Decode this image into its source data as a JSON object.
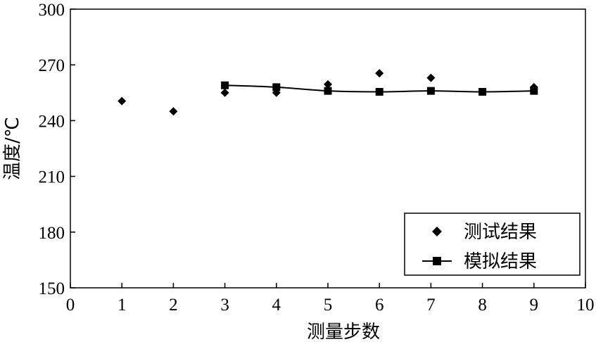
{
  "chart_data": {
    "type": "line",
    "xlabel": "测量步数",
    "ylabel": "温度/℃",
    "xlim": [
      0,
      10
    ],
    "ylim": [
      150,
      300
    ],
    "xticks": [
      "0",
      "1",
      "2",
      "3",
      "4",
      "5",
      "6",
      "7",
      "8",
      "9",
      "10"
    ],
    "yticks": [
      "150",
      "180",
      "210",
      "240",
      "270",
      "300"
    ],
    "grid": false,
    "legend_position": "bottom-right",
    "series": [
      {
        "name": "测试结果",
        "style": "scatter",
        "marker": "diamond",
        "color": "#000000",
        "x": [
          1,
          2,
          3,
          4,
          5,
          6,
          7,
          9
        ],
        "y": [
          250.5,
          245,
          255,
          255,
          259.5,
          265.5,
          263,
          258
        ]
      },
      {
        "name": "模拟结果",
        "style": "line",
        "marker": "square",
        "color": "#000000",
        "x": [
          3,
          4,
          5,
          6,
          7,
          8,
          9
        ],
        "y": [
          259,
          258,
          256,
          255.5,
          256,
          255.5,
          256
        ]
      }
    ]
  }
}
